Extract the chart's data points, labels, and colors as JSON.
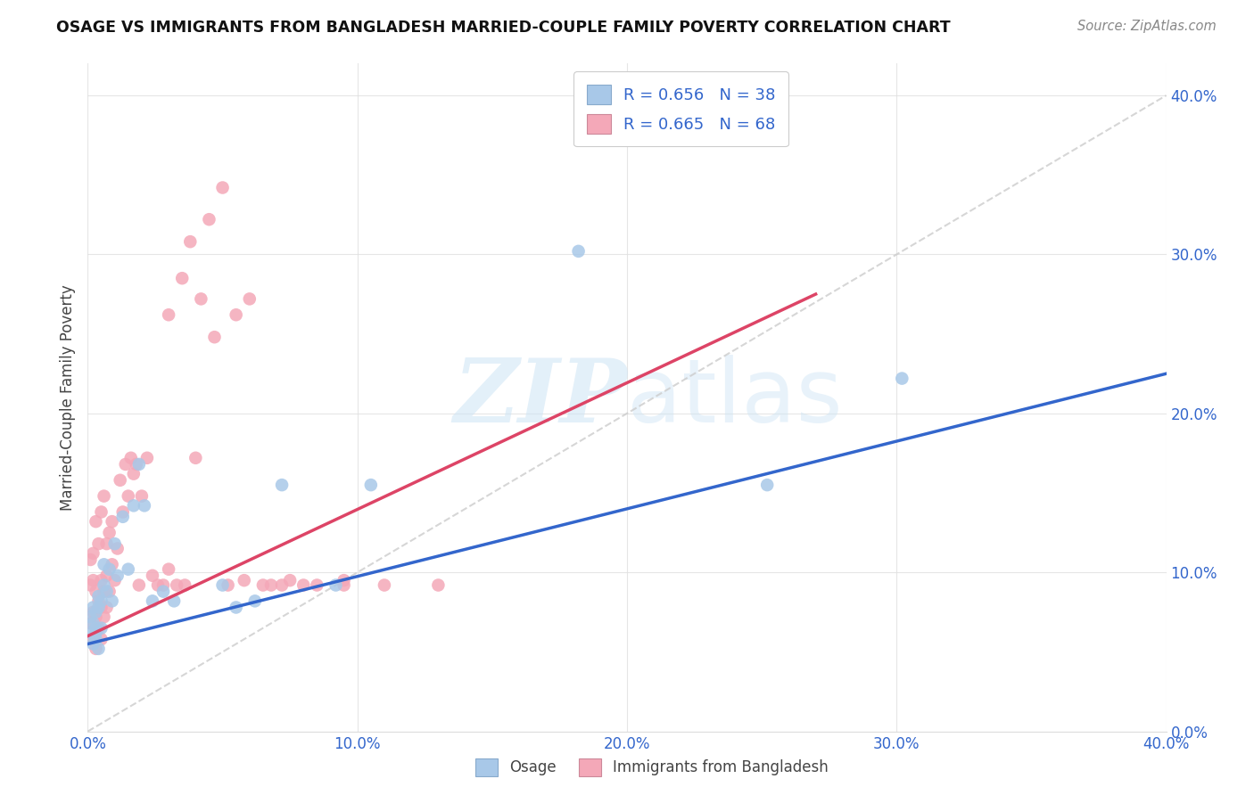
{
  "title": "OSAGE VS IMMIGRANTS FROM BANGLADESH MARRIED-COUPLE FAMILY POVERTY CORRELATION CHART",
  "source": "Source: ZipAtlas.com",
  "ylabel": "Married-Couple Family Poverty",
  "watermark_zip": "ZIP",
  "watermark_atlas": "atlas",
  "legend_r1": "R = 0.656",
  "legend_n1": "N = 38",
  "legend_r2": "R = 0.665",
  "legend_n2": "N = 68",
  "osage_color": "#a8c8e8",
  "bangladesh_color": "#f4a8b8",
  "osage_line_color": "#3366cc",
  "bangladesh_line_color": "#dd4466",
  "diagonal_color": "#cccccc",
  "xlim": [
    0.0,
    0.4
  ],
  "ylim": [
    0.0,
    0.42
  ],
  "xticks": [
    0.0,
    0.1,
    0.2,
    0.3,
    0.4
  ],
  "yticks": [
    0.0,
    0.1,
    0.2,
    0.3,
    0.4
  ],
  "xticklabels": [
    "0.0%",
    "10.0%",
    "20.0%",
    "30.0%",
    "40.0%"
  ],
  "yticklabels": [
    "0.0%",
    "10.0%",
    "20.0%",
    "30.0%",
    "40.0%"
  ],
  "osage_line_x": [
    0.0,
    0.4
  ],
  "osage_line_y": [
    0.055,
    0.225
  ],
  "bangladesh_line_x": [
    0.0,
    0.27
  ],
  "bangladesh_line_y": [
    0.06,
    0.275
  ],
  "osage_x": [
    0.001,
    0.001,
    0.002,
    0.002,
    0.002,
    0.003,
    0.003,
    0.003,
    0.003,
    0.004,
    0.004,
    0.004,
    0.005,
    0.005,
    0.006,
    0.006,
    0.007,
    0.008,
    0.009,
    0.01,
    0.011,
    0.013,
    0.015,
    0.017,
    0.019,
    0.021,
    0.024,
    0.028,
    0.032,
    0.05,
    0.055,
    0.062,
    0.072,
    0.092,
    0.105,
    0.182,
    0.252,
    0.302
  ],
  "osage_y": [
    0.062,
    0.072,
    0.055,
    0.078,
    0.068,
    0.058,
    0.075,
    0.065,
    0.062,
    0.052,
    0.078,
    0.085,
    0.065,
    0.082,
    0.092,
    0.105,
    0.088,
    0.102,
    0.082,
    0.118,
    0.098,
    0.135,
    0.102,
    0.142,
    0.168,
    0.142,
    0.082,
    0.088,
    0.082,
    0.092,
    0.078,
    0.082,
    0.155,
    0.092,
    0.155,
    0.302,
    0.155,
    0.222
  ],
  "bangladesh_x": [
    0.001,
    0.001,
    0.001,
    0.002,
    0.002,
    0.002,
    0.002,
    0.003,
    0.003,
    0.003,
    0.003,
    0.004,
    0.004,
    0.004,
    0.005,
    0.005,
    0.005,
    0.005,
    0.006,
    0.006,
    0.006,
    0.007,
    0.007,
    0.007,
    0.008,
    0.008,
    0.009,
    0.009,
    0.01,
    0.011,
    0.012,
    0.013,
    0.014,
    0.015,
    0.016,
    0.017,
    0.018,
    0.019,
    0.02,
    0.022,
    0.024,
    0.026,
    0.028,
    0.03,
    0.033,
    0.036,
    0.04,
    0.045,
    0.05,
    0.055,
    0.06,
    0.068,
    0.075,
    0.085,
    0.095,
    0.03,
    0.035,
    0.038,
    0.042,
    0.047,
    0.052,
    0.058,
    0.065,
    0.072,
    0.08,
    0.095,
    0.11,
    0.13
  ],
  "bangladesh_y": [
    0.068,
    0.092,
    0.108,
    0.058,
    0.075,
    0.095,
    0.112,
    0.052,
    0.072,
    0.088,
    0.132,
    0.065,
    0.082,
    0.118,
    0.058,
    0.078,
    0.095,
    0.138,
    0.072,
    0.088,
    0.148,
    0.078,
    0.098,
    0.118,
    0.088,
    0.125,
    0.105,
    0.132,
    0.095,
    0.115,
    0.158,
    0.138,
    0.168,
    0.148,
    0.172,
    0.162,
    0.168,
    0.092,
    0.148,
    0.172,
    0.098,
    0.092,
    0.092,
    0.102,
    0.092,
    0.092,
    0.172,
    0.322,
    0.342,
    0.262,
    0.272,
    0.092,
    0.095,
    0.092,
    0.092,
    0.262,
    0.285,
    0.308,
    0.272,
    0.248,
    0.092,
    0.095,
    0.092,
    0.092,
    0.092,
    0.095,
    0.092,
    0.092
  ]
}
